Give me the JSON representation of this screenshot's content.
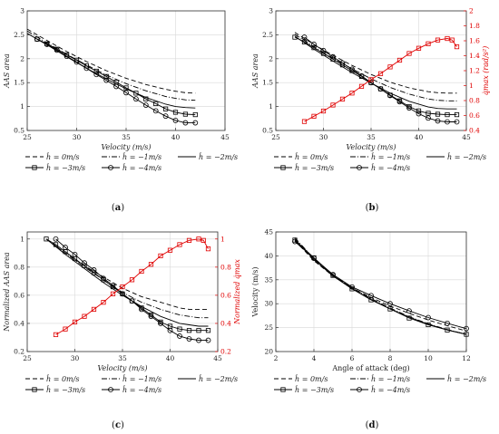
{
  "legend_labels": [
    "ḣ = 0m/s",
    "ḣ = −1m/s",
    "ḣ = −2m/s",
    "ḣ = −3m/s",
    "ḣ = −4m/s"
  ],
  "colors": {
    "black": "#000000",
    "red": "#e00000"
  },
  "chart_data": [
    {
      "type": "line",
      "panel": "a",
      "caption": "(a)",
      "xlabel": "Velocity (m/s)",
      "ylabel": "AAS area",
      "xlim": [
        25,
        45
      ],
      "ylim": [
        0.5,
        3
      ],
      "xticks": [
        25,
        30,
        35,
        40,
        45
      ],
      "yticks": [
        0.5,
        1,
        1.5,
        2,
        2.5,
        3
      ],
      "series": [
        {
          "name": "ḣ = 0m/s",
          "style": "dashed",
          "x": [
            25,
            27,
            29,
            31,
            33,
            35,
            37,
            39,
            40,
            41,
            42
          ],
          "y": [
            2.62,
            2.38,
            2.15,
            1.94,
            1.75,
            1.59,
            1.46,
            1.36,
            1.32,
            1.29,
            1.28
          ]
        },
        {
          "name": "ḣ = −1m/s",
          "style": "dashdot",
          "x": [
            25,
            27,
            29,
            31,
            33,
            35,
            37,
            39,
            40,
            41,
            42
          ],
          "y": [
            2.58,
            2.33,
            2.09,
            1.87,
            1.66,
            1.48,
            1.33,
            1.21,
            1.17,
            1.14,
            1.13
          ]
        },
        {
          "name": "ḣ = −2m/s",
          "style": "solid",
          "x": [
            25,
            27,
            29,
            31,
            33,
            35,
            37,
            39,
            40,
            41,
            42
          ],
          "y": [
            2.53,
            2.29,
            2.04,
            1.8,
            1.58,
            1.37,
            1.19,
            1.05,
            1.0,
            0.98,
            0.97
          ]
        },
        {
          "name": "ḣ = −3m/s",
          "style": "solid",
          "marker": "square",
          "x": [
            26,
            27,
            28,
            29,
            30,
            31,
            32,
            33,
            34,
            35,
            36,
            37,
            38,
            39,
            40,
            41,
            42
          ],
          "y": [
            2.41,
            2.31,
            2.2,
            2.08,
            1.97,
            1.85,
            1.74,
            1.63,
            1.51,
            1.39,
            1.28,
            1.16,
            1.06,
            0.95,
            0.88,
            0.84,
            0.83
          ]
        },
        {
          "name": "ḣ = −4m/s",
          "style": "solid",
          "marker": "circle",
          "x": [
            26,
            27,
            28,
            29,
            30,
            31,
            32,
            33,
            34,
            35,
            36,
            37,
            38,
            39,
            40,
            41,
            42
          ],
          "y": [
            2.41,
            2.3,
            2.18,
            2.05,
            1.93,
            1.8,
            1.67,
            1.55,
            1.42,
            1.29,
            1.16,
            1.03,
            0.91,
            0.8,
            0.71,
            0.66,
            0.66
          ]
        }
      ]
    },
    {
      "type": "line",
      "panel": "b",
      "caption": "(b)",
      "xlabel": "Velocity (m/s)",
      "ylabel": "AAS area",
      "y2label": "q̇max (rad/s²)",
      "xlim": [
        25,
        45
      ],
      "ylim": [
        0.5,
        3
      ],
      "y2lim": [
        0.4,
        2
      ],
      "xticks": [
        25,
        30,
        35,
        40,
        45
      ],
      "yticks": [
        0.5,
        1,
        1.5,
        2,
        2.5,
        3
      ],
      "y2ticks": [
        0.4,
        0.6,
        0.8,
        1,
        1.2,
        1.4,
        1.6,
        1.8,
        2
      ],
      "series": [
        {
          "name": "ḣ = 0m/s",
          "style": "dashed",
          "x": [
            27,
            29,
            31,
            33,
            35,
            37,
            39,
            41,
            42,
            43,
            44
          ],
          "y": [
            2.55,
            2.3,
            2.07,
            1.86,
            1.67,
            1.51,
            1.39,
            1.31,
            1.29,
            1.28,
            1.28
          ]
        },
        {
          "name": "ḣ = −1m/s",
          "style": "dashdot",
          "x": [
            27,
            29,
            31,
            33,
            35,
            37,
            39,
            41,
            42,
            43,
            44
          ],
          "y": [
            2.51,
            2.25,
            2.01,
            1.79,
            1.58,
            1.4,
            1.26,
            1.16,
            1.13,
            1.12,
            1.12
          ]
        },
        {
          "name": "ḣ = −2m/s",
          "style": "solid",
          "x": [
            27,
            29,
            31,
            33,
            35,
            37,
            39,
            41,
            42,
            43,
            44
          ],
          "y": [
            2.47,
            2.2,
            1.95,
            1.71,
            1.49,
            1.28,
            1.11,
            0.99,
            0.96,
            0.95,
            0.95
          ]
        },
        {
          "name": "ḣ = −3m/s",
          "style": "solid",
          "marker": "square",
          "x": [
            27,
            28,
            29,
            30,
            31,
            32,
            33,
            34,
            35,
            36,
            37,
            38,
            39,
            40,
            41,
            42,
            43,
            44
          ],
          "y": [
            2.45,
            2.35,
            2.23,
            2.11,
            1.99,
            1.87,
            1.75,
            1.63,
            1.5,
            1.37,
            1.24,
            1.12,
            1.0,
            0.91,
            0.86,
            0.84,
            0.83,
            0.83
          ]
        },
        {
          "name": "ḣ = −4m/s",
          "style": "solid",
          "marker": "circle",
          "x": [
            28,
            29,
            30,
            31,
            32,
            33,
            34,
            35,
            36,
            37,
            38,
            39,
            40,
            41,
            42,
            43,
            44
          ],
          "y": [
            2.45,
            2.3,
            2.17,
            2.04,
            1.91,
            1.78,
            1.64,
            1.5,
            1.37,
            1.23,
            1.1,
            0.97,
            0.85,
            0.76,
            0.7,
            0.68,
            0.68
          ]
        },
        {
          "name": "",
          "axis": "right",
          "color": "#e00000",
          "style": "solid",
          "marker": "square",
          "x": [
            28,
            29,
            30,
            31,
            32,
            33,
            34,
            35,
            36,
            37,
            38,
            39,
            40,
            41,
            42,
            43,
            43.5,
            44
          ],
          "y": [
            0.52,
            0.59,
            0.66,
            0.74,
            0.82,
            0.9,
            0.99,
            1.08,
            1.16,
            1.25,
            1.34,
            1.43,
            1.5,
            1.56,
            1.61,
            1.63,
            1.61,
            1.52
          ]
        }
      ]
    },
    {
      "type": "line",
      "panel": "c",
      "caption": "(c)",
      "xlabel": "Velocity (m/s)",
      "ylabel": "Normalized AAS area",
      "y2label": "Normalized q̇max",
      "xlim": [
        25,
        45
      ],
      "ylim": [
        0.2,
        1.05
      ],
      "y2lim": [
        0.2,
        1.05
      ],
      "xticks": [
        25,
        30,
        35,
        40,
        45
      ],
      "yticks": [
        0.2,
        0.4,
        0.6,
        0.8,
        1
      ],
      "y2ticks": [
        0.2,
        0.4,
        0.6,
        0.8,
        1
      ],
      "series": [
        {
          "name": "ḣ = 0m/s",
          "style": "dashed",
          "x": [
            27,
            29,
            31,
            33,
            35,
            37,
            39,
            41,
            42,
            43,
            44
          ],
          "y": [
            1.0,
            0.9,
            0.81,
            0.73,
            0.65,
            0.59,
            0.55,
            0.51,
            0.5,
            0.5,
            0.5
          ]
        },
        {
          "name": "ḣ = −1m/s",
          "style": "dashdot",
          "x": [
            27,
            29,
            31,
            33,
            35,
            37,
            39,
            41,
            42,
            43,
            44
          ],
          "y": [
            1.0,
            0.9,
            0.8,
            0.71,
            0.62,
            0.55,
            0.5,
            0.46,
            0.45,
            0.44,
            0.44
          ]
        },
        {
          "name": "ḣ = −2m/s",
          "style": "solid",
          "x": [
            27,
            29,
            31,
            33,
            35,
            37,
            39,
            41,
            42,
            43,
            44
          ],
          "y": [
            1.0,
            0.89,
            0.79,
            0.69,
            0.6,
            0.52,
            0.45,
            0.4,
            0.39,
            0.38,
            0.38
          ]
        },
        {
          "name": "ḣ = −3m/s",
          "style": "solid",
          "marker": "square",
          "x": [
            27,
            28,
            29,
            30,
            31,
            32,
            33,
            34,
            35,
            36,
            37,
            38,
            39,
            40,
            41,
            42,
            43,
            44
          ],
          "y": [
            1.0,
            0.96,
            0.91,
            0.86,
            0.81,
            0.76,
            0.71,
            0.66,
            0.61,
            0.56,
            0.51,
            0.46,
            0.41,
            0.38,
            0.36,
            0.35,
            0.35,
            0.35
          ]
        },
        {
          "name": "ḣ = −4m/s",
          "style": "solid",
          "marker": "circle",
          "x": [
            28,
            29,
            30,
            31,
            32,
            33,
            34,
            35,
            36,
            37,
            38,
            39,
            40,
            41,
            42,
            43,
            44
          ],
          "y": [
            1.0,
            0.94,
            0.89,
            0.83,
            0.78,
            0.72,
            0.67,
            0.61,
            0.56,
            0.5,
            0.45,
            0.4,
            0.35,
            0.31,
            0.29,
            0.28,
            0.28
          ]
        },
        {
          "name": "",
          "axis": "right",
          "color": "#e00000",
          "style": "solid",
          "marker": "square",
          "x": [
            28,
            29,
            30,
            31,
            32,
            33,
            34,
            35,
            36,
            37,
            38,
            39,
            40,
            41,
            42,
            43,
            43.5,
            44
          ],
          "y": [
            0.32,
            0.36,
            0.41,
            0.45,
            0.5,
            0.55,
            0.61,
            0.66,
            0.71,
            0.77,
            0.82,
            0.88,
            0.92,
            0.96,
            0.99,
            1.0,
            0.99,
            0.93
          ]
        }
      ]
    },
    {
      "type": "line",
      "panel": "d",
      "caption": "(d)",
      "xlabel": "Angle of attack (deg)",
      "ylabel": "Velocity (m/s)",
      "xlim": [
        2,
        12
      ],
      "ylim": [
        20,
        45
      ],
      "xticks": [
        2,
        4,
        6,
        8,
        10,
        12
      ],
      "yticks": [
        20,
        25,
        30,
        35,
        40,
        45
      ],
      "series": [
        {
          "name": "ḣ = 0m/s",
          "style": "dashed",
          "x": [
            3,
            4,
            5,
            6,
            7,
            8,
            9,
            10,
            11,
            12
          ],
          "y": [
            43.2,
            39.0,
            35.8,
            33.3,
            31.3,
            29.5,
            28.0,
            26.6,
            25.4,
            24.3
          ]
        },
        {
          "name": "ḣ = −1m/s",
          "style": "dashdot",
          "x": [
            3,
            4,
            5,
            6,
            7,
            8,
            9,
            10,
            11,
            12
          ],
          "y": [
            43.8,
            39.4,
            36.0,
            33.3,
            31.1,
            29.1,
            27.3,
            25.8,
            24.6,
            23.6
          ]
        },
        {
          "name": "ḣ = −2m/s",
          "style": "solid",
          "x": [
            3,
            4,
            5,
            6,
            7,
            8,
            9,
            10,
            11,
            12
          ],
          "y": [
            43.5,
            39.2,
            35.8,
            33.1,
            30.9,
            28.9,
            27.2,
            25.7,
            24.5,
            23.6
          ]
        },
        {
          "name": "ḣ = −3m/s",
          "style": "solid",
          "marker": "square",
          "x": [
            3,
            4,
            5,
            6,
            7,
            8,
            9,
            10,
            11,
            12
          ],
          "y": [
            43.3,
            39.6,
            35.9,
            33.1,
            30.8,
            28.9,
            27.0,
            25.6,
            24.5,
            23.6
          ]
        },
        {
          "name": "ḣ = −4m/s",
          "style": "solid",
          "marker": "circle",
          "x": [
            3,
            4,
            5,
            6,
            7,
            8,
            9,
            10,
            11,
            12
          ],
          "y": [
            43.0,
            39.5,
            36.1,
            33.5,
            31.7,
            30.0,
            28.5,
            27.1,
            25.9,
            24.8
          ]
        }
      ]
    }
  ]
}
